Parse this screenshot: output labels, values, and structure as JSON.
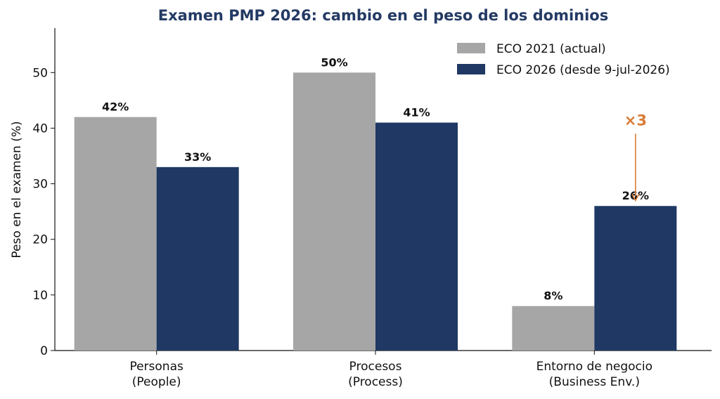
{
  "chart_data": {
    "type": "bar",
    "title": "Examen PMP 2026: cambio en el peso de los dominios",
    "xlabel": "",
    "ylabel": "Peso en el examen (%)",
    "ylim": [
      0,
      58
    ],
    "yticks": [
      0,
      10,
      20,
      30,
      40,
      50
    ],
    "categories": [
      [
        "Personas",
        "(People)"
      ],
      [
        "Procesos",
        "(Process)"
      ],
      [
        "Entorno de negocio",
        "(Business Env.)"
      ]
    ],
    "series": [
      {
        "name": "ECO 2021 (actual)",
        "values": [
          42,
          50,
          8
        ],
        "labels": [
          "42%",
          "50%",
          "8%"
        ],
        "color": "#a6a6a6"
      },
      {
        "name": "ECO 2026 (desde 9-jul-2026)",
        "values": [
          33,
          41,
          26
        ],
        "labels": [
          "33%",
          "41%",
          "26%"
        ],
        "color": "#1f3864"
      }
    ],
    "legend_position": "top-right",
    "grid": false,
    "annotation": {
      "text": "×3",
      "category_index": 2,
      "series_index": 1,
      "from_value": 39,
      "to_value": 27,
      "color": "#d97b35"
    }
  }
}
